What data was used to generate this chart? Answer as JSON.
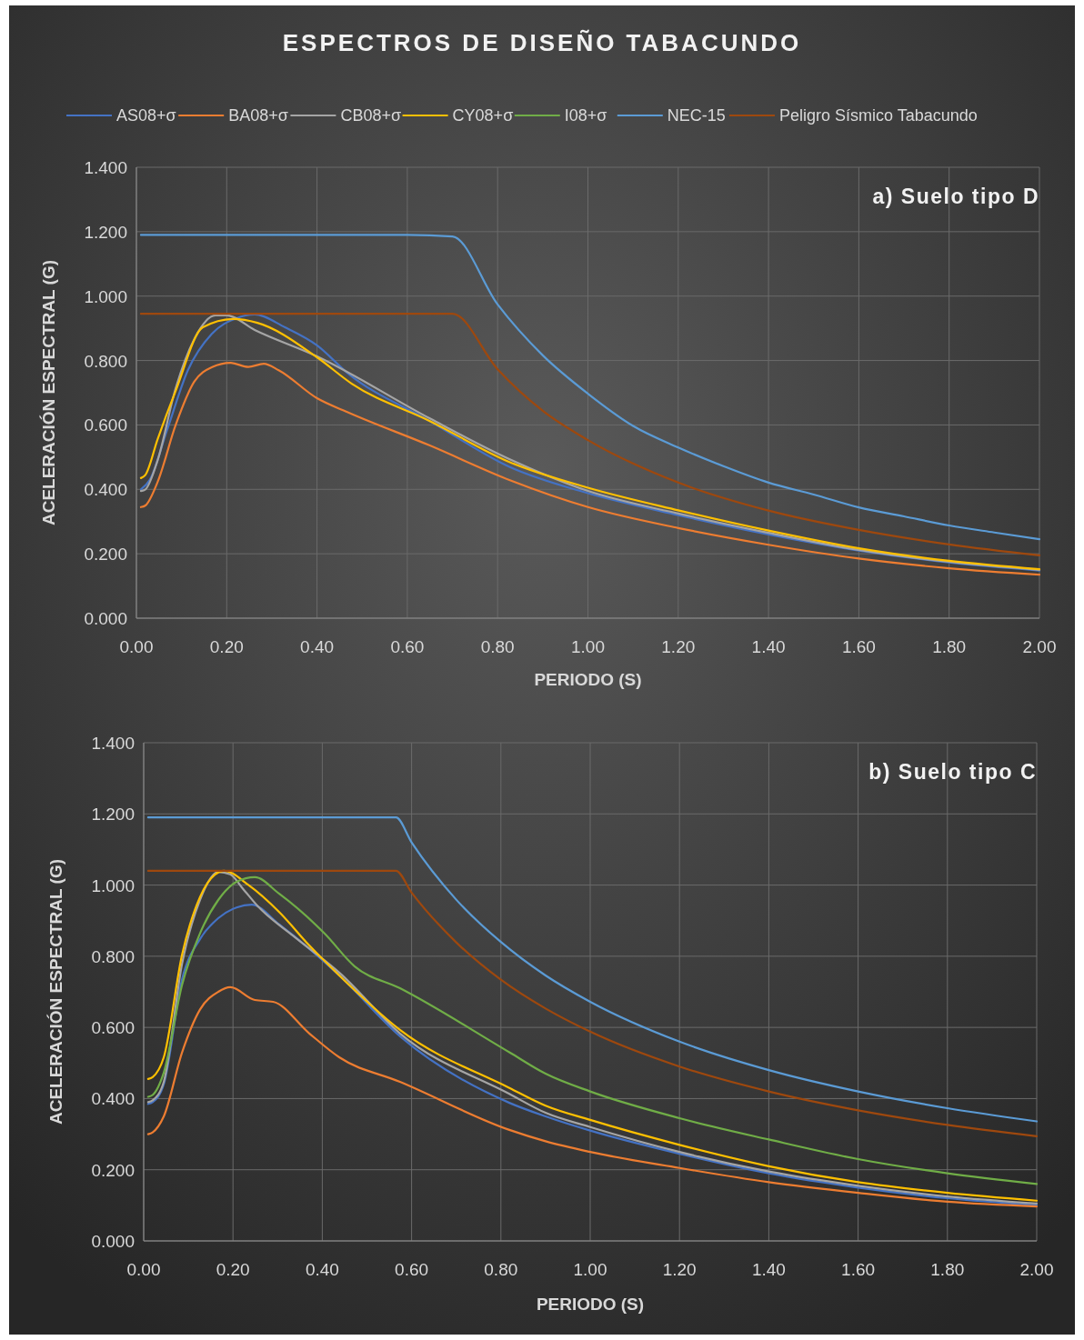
{
  "chart_data": [
    {
      "type": "line",
      "title": "ESPECTROS DE DISEÑO TABACUNDO",
      "subtitle": "a) Suelo tipo D",
      "xlabel": "PERIODO (S)",
      "ylabel": "ACELERACIÓN ESPECTRAL (G)",
      "grid": true,
      "marker": "none",
      "line_style": "solid",
      "xlim": [
        0,
        2
      ],
      "ylim": [
        0,
        1.4
      ],
      "xticks": [
        {
          "value": 0,
          "label": "0.00"
        },
        {
          "value": 0.2,
          "label": "0.20"
        },
        {
          "value": 0.4,
          "label": "0.40"
        },
        {
          "value": 0.6,
          "label": "0.60"
        },
        {
          "value": 0.8,
          "label": "0.80"
        },
        {
          "value": 1,
          "label": "1.00"
        },
        {
          "value": 1.2,
          "label": "1.20"
        },
        {
          "value": 1.4,
          "label": "1.40"
        },
        {
          "value": 1.6,
          "label": "1.60"
        },
        {
          "value": 1.8,
          "label": "1.80"
        },
        {
          "value": 2,
          "label": "2.00"
        }
      ],
      "yticks": [
        {
          "value": 0,
          "label": "0.000"
        },
        {
          "value": 0.2,
          "label": "0.200"
        },
        {
          "value": 0.4,
          "label": "0.400"
        },
        {
          "value": 0.6,
          "label": "0.600"
        },
        {
          "value": 0.8,
          "label": "0.800"
        },
        {
          "value": 1,
          "label": "1.000"
        },
        {
          "value": 1.2,
          "label": "1.200"
        },
        {
          "value": 1.4,
          "label": "1.400"
        }
      ],
      "series": [
        {
          "color": "#4472c4",
          "x": [
            0.01,
            0.03,
            0.067,
            0.114,
            0.167,
            0.221,
            0.262,
            0.329,
            0.4,
            0.467,
            0.65,
            0.826,
            1,
            1.2,
            1.4,
            1.6,
            1.8,
            2
          ],
          "values": [
            0.4,
            0.43,
            0.58,
            0.77,
            0.883,
            0.931,
            0.943,
            0.903,
            0.847,
            0.762,
            0.612,
            0.47,
            0.388,
            0.32,
            0.26,
            0.21,
            0.173,
            0.148
          ]
        },
        {
          "color": "#ed7d31",
          "x": [
            0.01,
            0.02,
            0.047,
            0.087,
            0.128,
            0.168,
            0.208,
            0.248,
            0.282,
            0.315,
            0.4,
            0.467,
            0.65,
            0.826,
            1,
            1.2,
            1.4,
            1.6,
            1.8,
            2
          ],
          "values": [
            0.345,
            0.35,
            0.423,
            0.6,
            0.734,
            0.78,
            0.793,
            0.78,
            0.79,
            0.77,
            0.683,
            0.64,
            0.536,
            0.429,
            0.345,
            0.28,
            0.228,
            0.185,
            0.155,
            0.135
          ]
        },
        {
          "color": "#a5a5a5",
          "x": [
            0.01,
            0.02,
            0.047,
            0.087,
            0.128,
            0.175,
            0.2,
            0.262,
            0.4,
            0.65,
            0.826,
            1,
            1.2,
            1.4,
            1.6,
            1.8,
            2
          ],
          "values": [
            0.395,
            0.4,
            0.49,
            0.714,
            0.866,
            0.94,
            0.94,
            0.895,
            0.813,
            0.62,
            0.494,
            0.395,
            0.325,
            0.265,
            0.212,
            0.175,
            0.15
          ]
        },
        {
          "color": "#ffc000",
          "x": [
            0.01,
            0.02,
            0.047,
            0.087,
            0.147,
            0.215,
            0.268,
            0.4,
            0.477,
            0.65,
            0.826,
            1,
            1.2,
            1.4,
            1.6,
            1.8,
            2
          ],
          "values": [
            0.435,
            0.445,
            0.556,
            0.706,
            0.903,
            0.929,
            0.917,
            0.81,
            0.728,
            0.612,
            0.485,
            0.405,
            0.335,
            0.272,
            0.217,
            0.178,
            0.152
          ]
        },
        {
          "color": "#5b9bd5",
          "x": [
            0.01,
            0.6,
            0.7,
            0.8,
            0.9,
            1,
            1.1,
            1.2,
            1.3,
            1.4,
            1.5,
            1.6,
            1.7,
            1.8,
            1.9,
            2
          ],
          "values": [
            1.19,
            1.19,
            1.185,
            0.974,
            0.816,
            0.697,
            0.597,
            0.53,
            0.472,
            0.421,
            0.384,
            0.344,
            0.316,
            0.288,
            0.266,
            0.245
          ]
        },
        {
          "color": "#9e480e",
          "x": [
            0.01,
            0.7,
            0.8,
            0.9,
            1,
            1.2,
            1.4,
            1.6,
            1.8,
            2
          ],
          "values": [
            0.945,
            0.945,
            0.773,
            0.644,
            0.553,
            0.421,
            0.334,
            0.274,
            0.229,
            0.195
          ]
        }
      ]
    },
    {
      "type": "line",
      "subtitle": "b) Suelo tipo C",
      "xlabel": "PERIODO (S)",
      "ylabel": "ACELERACIÓN ESPECTRAL (G)",
      "legend": "top",
      "grid": true,
      "marker": "none",
      "line_style": "solid",
      "xlim": [
        0,
        2
      ],
      "ylim": [
        0,
        1.4
      ],
      "xticks": [
        {
          "value": 0,
          "label": "0.00"
        },
        {
          "value": 0.2,
          "label": "0.20"
        },
        {
          "value": 0.4,
          "label": "0.40"
        },
        {
          "value": 0.6,
          "label": "0.60"
        },
        {
          "value": 0.8,
          "label": "0.80"
        },
        {
          "value": 1,
          "label": "1.00"
        },
        {
          "value": 1.2,
          "label": "1.20"
        },
        {
          "value": 1.4,
          "label": "1.40"
        },
        {
          "value": 1.6,
          "label": "1.60"
        },
        {
          "value": 1.8,
          "label": "1.80"
        },
        {
          "value": 2,
          "label": "2.00"
        }
      ],
      "yticks": [
        {
          "value": 0,
          "label": "0.000"
        },
        {
          "value": 0.2,
          "label": "0.200"
        },
        {
          "value": 0.4,
          "label": "0.400"
        },
        {
          "value": 0.6,
          "label": "0.600"
        },
        {
          "value": 0.8,
          "label": "0.800"
        },
        {
          "value": 1,
          "label": "1.000"
        },
        {
          "value": 1.2,
          "label": "1.200"
        },
        {
          "value": 1.4,
          "label": "1.400"
        }
      ],
      "series": [
        {
          "name": "AS08+σ",
          "color": "#4472c4",
          "x": [
            0.01,
            0.02,
            0.045,
            0.086,
            0.126,
            0.167,
            0.208,
            0.242,
            0.303,
            0.438,
            0.574,
            0.819,
            0.9,
            1,
            1.2,
            1.4,
            1.6,
            1.8,
            2
          ],
          "values": [
            0.385,
            0.39,
            0.44,
            0.736,
            0.848,
            0.907,
            0.937,
            0.945,
            0.89,
            0.746,
            0.575,
            0.388,
            0.35,
            0.31,
            0.245,
            0.19,
            0.15,
            0.12,
            0.1
          ]
        },
        {
          "name": "BA08+σ",
          "color": "#ed7d31",
          "x": [
            0.01,
            0.02,
            0.045,
            0.086,
            0.126,
            0.167,
            0.194,
            0.249,
            0.29,
            0.371,
            0.438,
            0.574,
            0.819,
            0.9,
            1,
            1.2,
            1.4,
            1.6,
            1.8,
            2
          ],
          "values": [
            0.3,
            0.305,
            0.35,
            0.53,
            0.65,
            0.7,
            0.713,
            0.677,
            0.672,
            0.583,
            0.516,
            0.447,
            0.312,
            0.28,
            0.25,
            0.205,
            0.165,
            0.135,
            0.11,
            0.097
          ]
        },
        {
          "name": "CB08+σ",
          "color": "#a5a5a5",
          "x": [
            0.01,
            0.02,
            0.045,
            0.086,
            0.126,
            0.167,
            0.194,
            0.222,
            0.256,
            0.336,
            0.438,
            0.574,
            0.819,
            0.9,
            1,
            1.2,
            1.4,
            1.6,
            1.8,
            2
          ],
          "values": [
            0.39,
            0.395,
            0.447,
            0.779,
            0.958,
            1.037,
            1.03,
            0.99,
            0.94,
            0.856,
            0.754,
            0.583,
            0.413,
            0.36,
            0.32,
            0.25,
            0.195,
            0.155,
            0.125,
            0.105
          ]
        },
        {
          "name": "CY08+σ",
          "color": "#ffc000",
          "x": [
            0.01,
            0.02,
            0.045,
            0.086,
            0.126,
            0.16,
            0.18,
            0.235,
            0.303,
            0.371,
            0.438,
            0.574,
            0.819,
            0.9,
            1,
            1.2,
            1.4,
            1.6,
            1.8,
            2
          ],
          "values": [
            0.455,
            0.46,
            0.516,
            0.805,
            0.966,
            1.03,
            1.04,
            1,
            0.925,
            0.83,
            0.746,
            0.593,
            0.43,
            0.38,
            0.34,
            0.27,
            0.21,
            0.165,
            0.135,
            0.113
          ]
        },
        {
          "name": "I08+σ",
          "color": "#70ad47",
          "x": [
            0.01,
            0.02,
            0.045,
            0.086,
            0.126,
            0.167,
            0.208,
            0.249,
            0.303,
            0.405,
            0.472,
            0.574,
            0.819,
            0.9,
            1,
            1.2,
            1.4,
            1.6,
            1.8,
            2
          ],
          "values": [
            0.405,
            0.41,
            0.473,
            0.72,
            0.864,
            0.958,
            1.009,
            1.022,
            0.976,
            0.864,
            0.772,
            0.71,
            0.53,
            0.47,
            0.42,
            0.345,
            0.285,
            0.23,
            0.19,
            0.16
          ]
        },
        {
          "name": "NEC-15",
          "color": "#5b9bd5",
          "x": [
            0.01,
            0.565,
            0.6,
            0.7,
            0.8,
            0.9,
            1,
            1.2,
            1.4,
            1.6,
            1.8,
            2
          ],
          "values": [
            1.19,
            1.19,
            1.12,
            0.959,
            0.84,
            0.746,
            0.672,
            0.56,
            0.48,
            0.42,
            0.373,
            0.336
          ]
        },
        {
          "name": "Peligro Sísmico Tabacundo",
          "color": "#9e480e",
          "x": [
            0.01,
            0.565,
            0.6,
            0.7,
            0.8,
            0.9,
            1,
            1.2,
            1.4,
            1.6,
            1.8,
            2
          ],
          "values": [
            1.04,
            1.04,
            0.979,
            0.839,
            0.734,
            0.653,
            0.588,
            0.49,
            0.42,
            0.367,
            0.326,
            0.294
          ]
        }
      ]
    }
  ]
}
